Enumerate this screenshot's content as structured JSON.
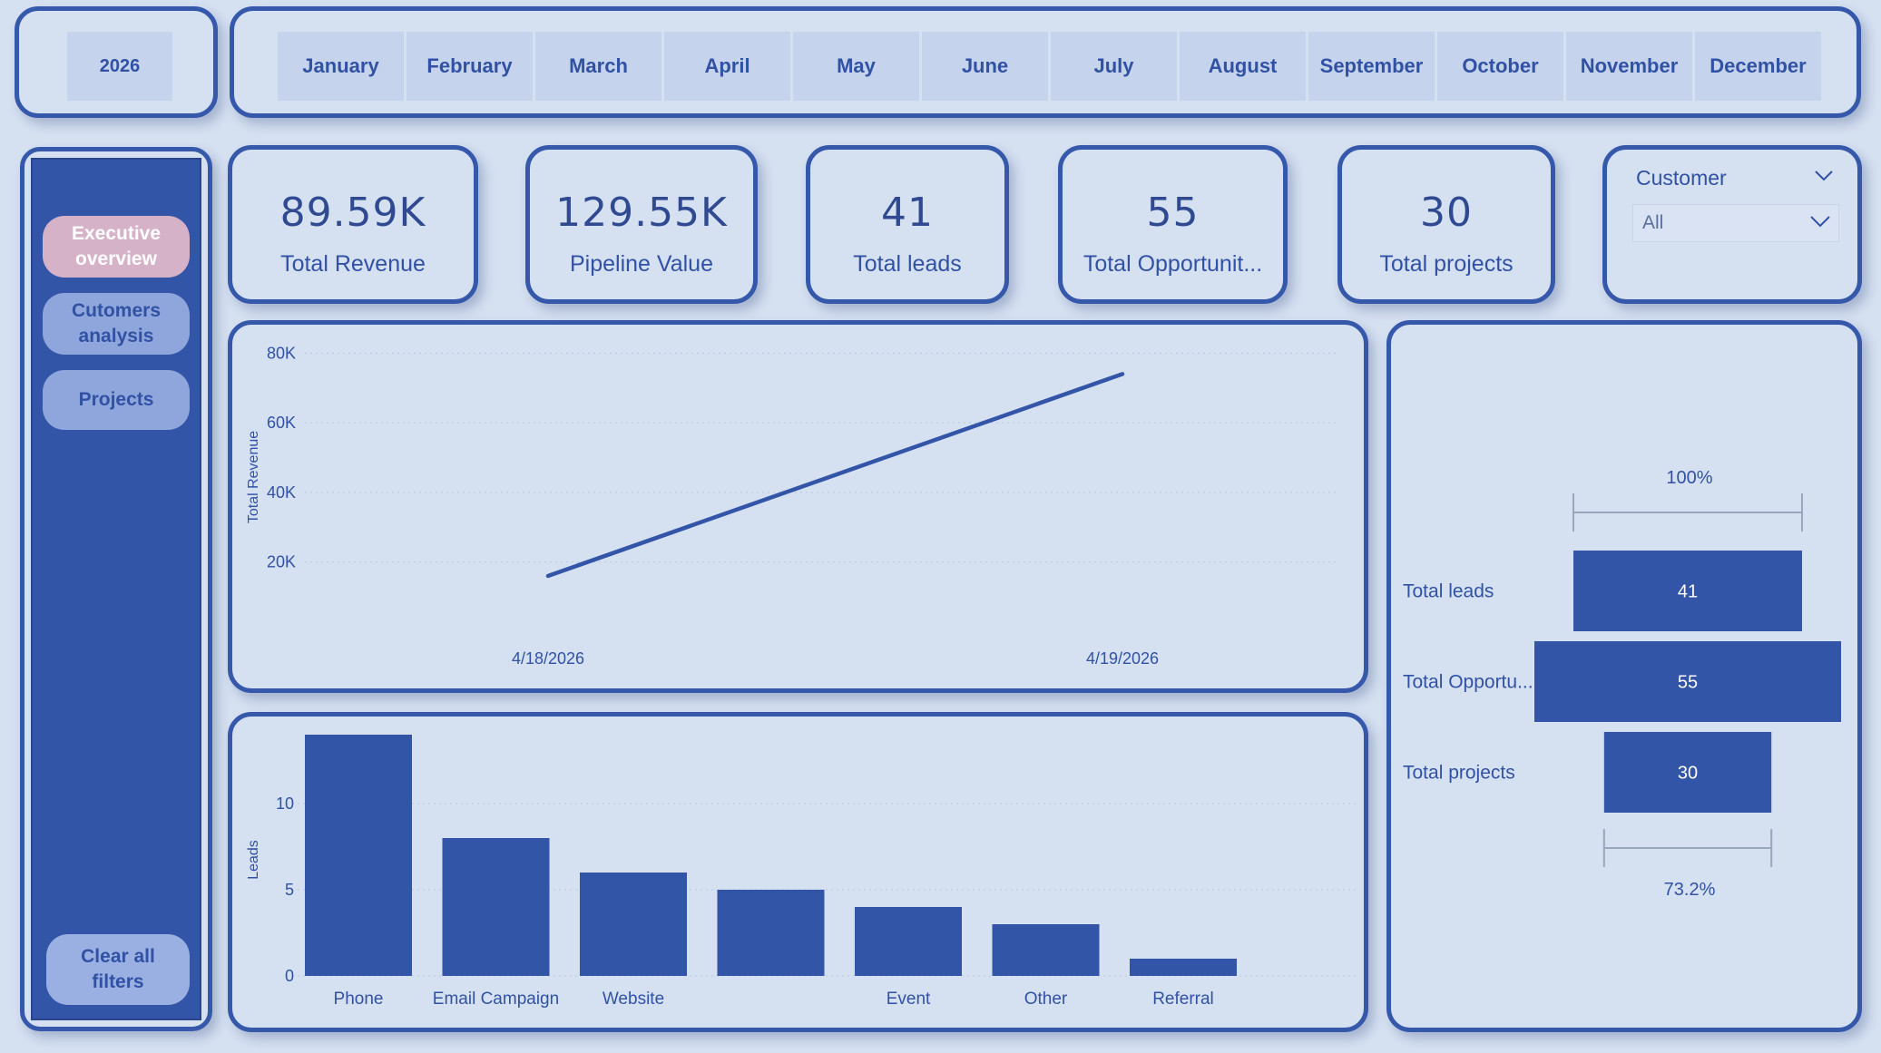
{
  "year_slicer": {
    "selected": "2026"
  },
  "month_slicer": {
    "months": [
      "January",
      "February",
      "March",
      "April",
      "May",
      "June",
      "July",
      "August",
      "September",
      "October",
      "November",
      "December"
    ]
  },
  "nav": {
    "executive_overview": "Executive overview",
    "customers_analysis": "Cutomers analysis",
    "projects": "Projects",
    "clear_filters": "Clear all filters"
  },
  "kpis": {
    "total_revenue": {
      "value": "89.59K",
      "label": "Total Revenue"
    },
    "pipeline_value": {
      "value": "129.55K",
      "label": "Pipeline Value"
    },
    "total_leads": {
      "value": "41",
      "label": "Total leads"
    },
    "total_opportunities": {
      "value": "55",
      "label": "Total Opportunit..."
    },
    "total_projects": {
      "value": "30",
      "label": "Total projects"
    }
  },
  "customer_slicer": {
    "title": "Customer",
    "selected": "All"
  },
  "colors": {
    "accent": "#3355a8",
    "background": "#d5e0f1",
    "active_nav": "#d6b2c9"
  },
  "chart_data": [
    {
      "type": "line",
      "title": "",
      "xlabel": "",
      "ylabel": "Total Revenue",
      "x": [
        "4/18/2026",
        "4/19/2026"
      ],
      "series": [
        {
          "values": [
            16000,
            74000
          ]
        }
      ],
      "ylim": [
        10000,
        84000
      ],
      "yticks": [
        20000,
        40000,
        60000,
        80000
      ],
      "ytick_labels": [
        "20K",
        "40K",
        "60K",
        "80K"
      ],
      "grid": true
    },
    {
      "type": "bar",
      "title": "",
      "xlabel": "",
      "ylabel": "Leads",
      "categories": [
        "Phone",
        "Email Campaign",
        "Website",
        "",
        "Event",
        "Other",
        "Referral"
      ],
      "values": [
        14,
        8,
        6,
        5,
        4,
        3,
        1
      ],
      "ylim": [
        0,
        14
      ],
      "yticks": [
        0,
        5,
        10
      ],
      "grid": true
    },
    {
      "type": "funnel",
      "categories": [
        "Total leads",
        "Total Opportu...",
        "Total projects"
      ],
      "values": [
        41,
        55,
        30
      ],
      "top_percent": "100%",
      "bottom_percent": "73.2%"
    }
  ]
}
